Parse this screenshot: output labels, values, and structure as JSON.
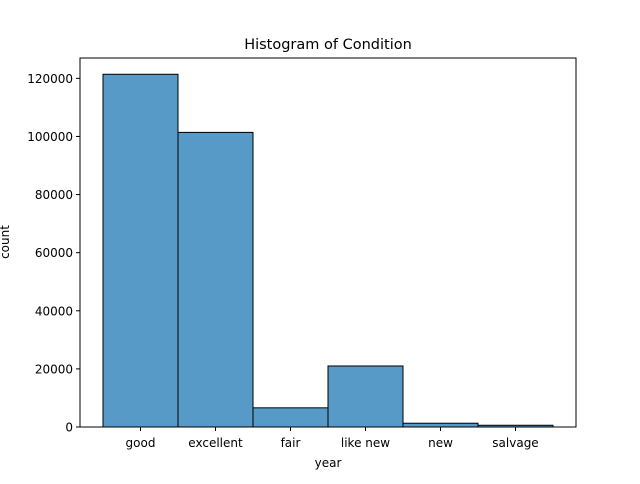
{
  "chart_data": {
    "type": "bar",
    "title": "Histogram of Condition",
    "xlabel": "year",
    "ylabel": "count",
    "categories": [
      "good",
      "excellent",
      "fair",
      "like new",
      "new",
      "salvage"
    ],
    "values": [
      121400,
      101400,
      6600,
      21000,
      1300,
      600
    ],
    "ylim": [
      0,
      127000
    ],
    "yticks": [
      0,
      20000,
      40000,
      60000,
      80000,
      100000,
      120000
    ],
    "ytick_labels": [
      "0",
      "20000",
      "40000",
      "60000",
      "80000",
      "100000",
      "120000"
    ],
    "grid": false,
    "legend": "none",
    "bar_color": "#5799c7",
    "edge_color": "#000000"
  }
}
